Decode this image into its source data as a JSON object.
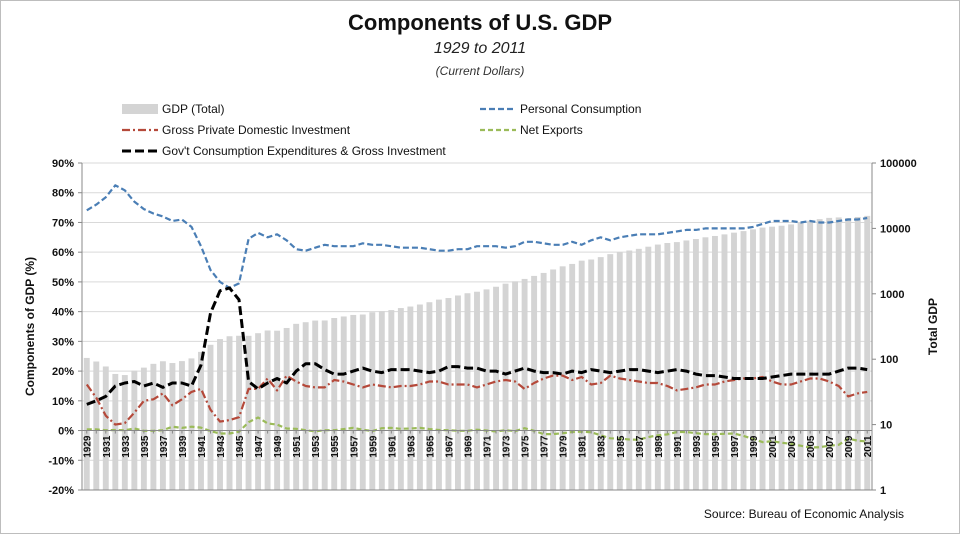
{
  "header": {
    "title": "Components of U.S. GDP",
    "subtitle": "1929 to 2011",
    "note": "(Current Dollars)"
  },
  "source": "Source: Bureau of Economic Analysis",
  "chart_data": {
    "type": "bar",
    "years": [
      1929,
      1930,
      1931,
      1932,
      1933,
      1934,
      1935,
      1936,
      1937,
      1938,
      1939,
      1940,
      1941,
      1942,
      1943,
      1944,
      1945,
      1946,
      1947,
      1948,
      1949,
      1950,
      1951,
      1952,
      1953,
      1954,
      1955,
      1956,
      1957,
      1958,
      1959,
      1960,
      1961,
      1962,
      1963,
      1964,
      1965,
      1966,
      1967,
      1968,
      1969,
      1970,
      1971,
      1972,
      1973,
      1974,
      1975,
      1976,
      1977,
      1978,
      1979,
      1980,
      1981,
      1982,
      1983,
      1984,
      1985,
      1986,
      1987,
      1988,
      1989,
      1990,
      1991,
      1992,
      1993,
      1994,
      1995,
      1996,
      1997,
      1998,
      1999,
      2000,
      2001,
      2002,
      2003,
      2004,
      2005,
      2006,
      2007,
      2008,
      2009,
      2010,
      2011
    ],
    "x_tick_labels": [
      "1929",
      "1931",
      "1933",
      "1935",
      "1937",
      "1939",
      "1941",
      "1943",
      "1945",
      "1947",
      "1949",
      "1951",
      "1953",
      "1955",
      "1957",
      "1959",
      "1961",
      "1963",
      "1965",
      "1967",
      "1969",
      "1971",
      "1973",
      "1975",
      "1977",
      "1979",
      "1981",
      "1983",
      "1985",
      "1987",
      "1989",
      "1991",
      "1993",
      "1995",
      "1997",
      "1999",
      "2001",
      "2003",
      "2005",
      "2007",
      "2009",
      "2011"
    ],
    "y_left": {
      "label": "Components of GDP (%)",
      "min": -20,
      "max": 90,
      "step": 10,
      "tick_labels": [
        "-20%",
        "-10%",
        "0%",
        "10%",
        "20%",
        "30%",
        "40%",
        "50%",
        "60%",
        "70%",
        "80%",
        "90%"
      ]
    },
    "y_right": {
      "label": "Total GDP",
      "scale": "log",
      "min": 1,
      "max": 100000,
      "tick_labels": [
        "1",
        "10",
        "100",
        "1000",
        "10000",
        "100000"
      ]
    },
    "legend": {
      "placement": "top",
      "entries": [
        {
          "key": "gdp",
          "name": "GDP (Total)"
        },
        {
          "key": "pce",
          "name": "Personal Consumption"
        },
        {
          "key": "gpdi",
          "name": "Gross Private Domestic Investment"
        },
        {
          "key": "nx",
          "name": "Net Exports"
        },
        {
          "key": "gov",
          "name": "Gov't Consumption Expenditures & Gross Investment"
        }
      ]
    },
    "colors": {
      "gdp": "#d4d4d4",
      "pce": "#4a7eb5",
      "gpdi": "#b5493a",
      "nx": "#9bbb59",
      "gov": "#000000"
    },
    "series": {
      "gdp": [
        104.6,
        92.2,
        77.4,
        59.5,
        57.2,
        66.8,
        74.3,
        84.9,
        93.0,
        87.4,
        93.5,
        102.9,
        129.4,
        166.0,
        203.1,
        224.6,
        228.2,
        227.8,
        249.9,
        274.8,
        272.8,
        300.2,
        347.3,
        367.7,
        389.7,
        391.1,
        426.2,
        450.1,
        474.9,
        482.0,
        522.5,
        543.3,
        563.3,
        605.1,
        638.6,
        685.8,
        743.7,
        815.0,
        861.7,
        942.5,
        1019.9,
        1075.9,
        1167.8,
        1282.4,
        1428.5,
        1548.8,
        1688.9,
        1877.6,
        2086.0,
        2356.6,
        2632.1,
        2862.5,
        3211.0,
        3345.0,
        3638.1,
        4040.7,
        4346.7,
        4590.2,
        4870.2,
        5252.6,
        5657.7,
        5979.6,
        6174.0,
        6539.3,
        6878.7,
        7308.8,
        7664.1,
        8100.2,
        8608.5,
        9089.2,
        9665.7,
        10289.7,
        10625.3,
        10980.2,
        11512.2,
        12277.0,
        13095.4,
        13857.9,
        14480.3,
        14720.3,
        14417.9,
        14958.3,
        15533.8
      ],
      "pce": [
        74.1,
        76.0,
        78.5,
        82.5,
        80.8,
        77.0,
        74.5,
        73.0,
        72.0,
        70.5,
        71.0,
        68.5,
        62.0,
        54.0,
        50.0,
        48.0,
        49.5,
        64.5,
        66.5,
        65.0,
        66.0,
        64.0,
        61.0,
        60.5,
        61.5,
        62.5,
        62.0,
        62.0,
        62.0,
        63.0,
        62.5,
        62.5,
        62.0,
        61.5,
        61.5,
        61.5,
        61.0,
        60.5,
        60.5,
        61.0,
        61.0,
        62.0,
        62.0,
        62.0,
        61.5,
        62.0,
        63.5,
        63.5,
        63.0,
        62.5,
        62.5,
        63.5,
        62.5,
        64.0,
        65.0,
        64.0,
        65.0,
        65.5,
        66.0,
        66.0,
        66.0,
        66.5,
        67.0,
        67.5,
        67.5,
        68.0,
        68.0,
        68.0,
        68.0,
        68.0,
        68.5,
        69.5,
        70.5,
        70.5,
        70.5,
        70.0,
        70.5,
        70.0,
        70.0,
        70.5,
        71.0,
        71.0,
        71.5
      ],
      "gpdi": [
        15.5,
        11.0,
        5.0,
        2.0,
        2.5,
        6.0,
        10.0,
        10.5,
        12.5,
        8.5,
        10.5,
        13.0,
        14.0,
        7.0,
        3.0,
        3.5,
        4.5,
        14.0,
        14.0,
        17.5,
        13.5,
        18.5,
        16.5,
        15.0,
        14.5,
        14.5,
        17.0,
        16.5,
        15.5,
        14.5,
        15.5,
        15.0,
        14.5,
        15.0,
        15.0,
        15.5,
        16.5,
        16.5,
        15.5,
        15.5,
        15.5,
        14.5,
        15.5,
        16.5,
        17.0,
        16.5,
        14.0,
        16.0,
        17.5,
        18.5,
        18.5,
        17.0,
        18.0,
        15.5,
        16.0,
        18.5,
        17.5,
        17.0,
        16.5,
        16.0,
        16.0,
        15.0,
        13.5,
        14.0,
        14.5,
        15.5,
        15.5,
        16.5,
        17.0,
        17.5,
        17.5,
        18.0,
        16.5,
        15.5,
        15.5,
        16.5,
        17.5,
        17.5,
        16.5,
        15.0,
        11.5,
        12.5,
        13.0
      ],
      "nx": [
        0.4,
        0.4,
        0.1,
        0.2,
        0.1,
        0.7,
        -0.1,
        -0.1,
        0.1,
        1.3,
        0.9,
        1.3,
        1.0,
        -0.2,
        -1.0,
        -1.0,
        -0.4,
        2.8,
        4.4,
        2.4,
        2.0,
        0.7,
        0.6,
        0.1,
        -0.3,
        0.1,
        0.1,
        0.5,
        0.9,
        0.3,
        -0.2,
        0.8,
        0.9,
        0.6,
        0.7,
        0.9,
        0.5,
        0.2,
        0.1,
        -0.1,
        -0.1,
        0.3,
        0.0,
        -0.3,
        0.1,
        -0.2,
        0.8,
        -0.1,
        -1.2,
        -1.2,
        -0.9,
        -0.5,
        -0.4,
        -0.6,
        -1.6,
        -2.6,
        -2.7,
        -3.0,
        -3.1,
        -2.2,
        -1.6,
        -1.3,
        -0.5,
        -0.5,
        -0.9,
        -1.2,
        -1.2,
        -1.1,
        -1.0,
        -1.8,
        -2.8,
        -3.9,
        -3.6,
        -4.1,
        -4.5,
        -5.1,
        -5.7,
        -5.6,
        -5.1,
        -4.8,
        -2.7,
        -3.4,
        -3.7
      ],
      "gov": [
        8.8,
        10.0,
        11.5,
        15.0,
        16.0,
        16.5,
        15.0,
        16.0,
        14.5,
        16.0,
        16.0,
        15.0,
        22.0,
        39.5,
        47.0,
        48.0,
        44.0,
        16.5,
        14.0,
        16.0,
        17.5,
        16.0,
        20.0,
        22.5,
        22.5,
        20.5,
        19.0,
        19.0,
        20.0,
        21.0,
        20.0,
        19.5,
        20.5,
        20.5,
        20.5,
        20.0,
        19.5,
        20.0,
        21.5,
        21.5,
        21.0,
        21.0,
        20.0,
        20.0,
        19.0,
        20.0,
        21.0,
        20.0,
        19.5,
        19.5,
        19.0,
        20.0,
        19.5,
        20.5,
        20.0,
        19.5,
        20.0,
        20.5,
        20.5,
        20.0,
        19.5,
        20.0,
        20.5,
        20.0,
        19.0,
        18.5,
        18.5,
        18.0,
        17.5,
        17.5,
        17.5,
        17.5,
        18.0,
        18.5,
        19.0,
        19.0,
        19.0,
        19.0,
        19.0,
        20.0,
        21.0,
        21.0,
        20.5
      ]
    },
    "grid": true
  }
}
